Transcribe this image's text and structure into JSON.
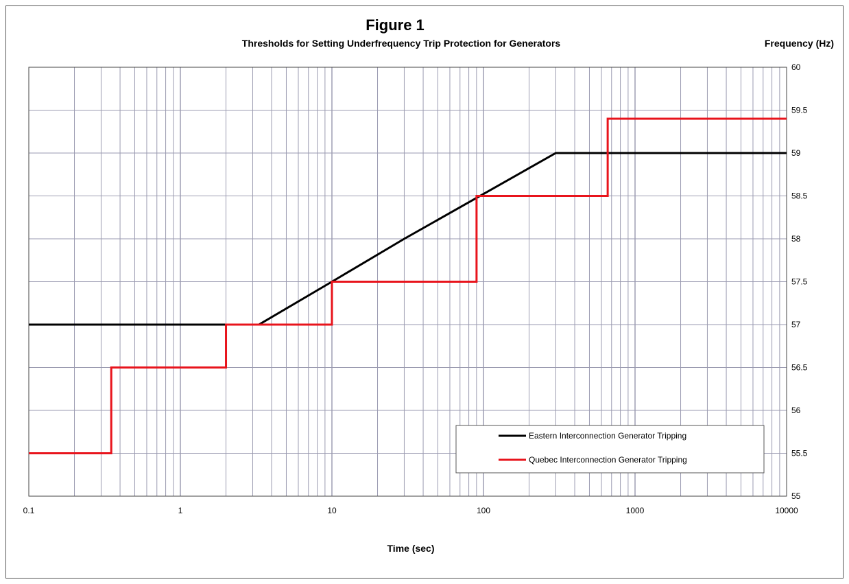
{
  "chart_data": {
    "type": "line",
    "title": "Figure 1",
    "subtitle": "Thresholds for Setting Underfrequency Trip Protection for Generators",
    "xlabel": "Time (sec)",
    "ylabel": "Frequency (Hz)",
    "x_scale": "log",
    "xlim": [
      0.1,
      10000
    ],
    "ylim": [
      55,
      60
    ],
    "x_ticks": [
      "0.1",
      "1",
      "10",
      "100",
      "1000",
      "10000"
    ],
    "y_ticks": [
      "55",
      "55.5",
      "56",
      "56.5",
      "57",
      "57.5",
      "58",
      "58.5",
      "59",
      "59.5",
      "60"
    ],
    "grid": true,
    "legend_position": "bottom-right",
    "series": [
      {
        "name": "Eastern Interconnection Generator Tripping",
        "color": "#000000",
        "points": [
          [
            0.1,
            57.0
          ],
          [
            3.3,
            57.0
          ],
          [
            10,
            57.5
          ],
          [
            30,
            58.0
          ],
          [
            300,
            59.0
          ],
          [
            10000,
            59.0
          ]
        ]
      },
      {
        "name": "Quebec Interconnection Generator Tripping",
        "color": "#e8141c",
        "points": [
          [
            0.1,
            55.5
          ],
          [
            0.35,
            55.5
          ],
          [
            0.35,
            56.5
          ],
          [
            2,
            56.5
          ],
          [
            2,
            57.0
          ],
          [
            10,
            57.0
          ],
          [
            10,
            57.5
          ],
          [
            90,
            57.5
          ],
          [
            90,
            58.5
          ],
          [
            660,
            58.5
          ],
          [
            660,
            59.4
          ],
          [
            10000,
            59.4
          ]
        ]
      }
    ]
  }
}
